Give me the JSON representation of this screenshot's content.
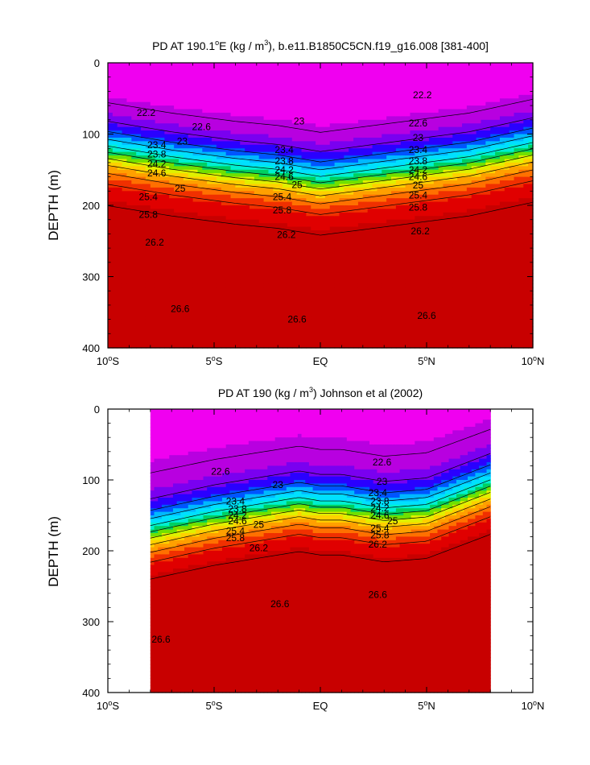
{
  "chart_data": [
    {
      "type": "contour",
      "title_prefix": "PD AT 190.1",
      "title_degree": "o",
      "title_middle": "E (kg / m",
      "title_sup": "3",
      "title_suffix": "), b.e11.B1850C5CN.f19_g16.008 [381-400]",
      "ylabel": "DEPTH (m)",
      "xlim": [
        -10,
        10
      ],
      "ylim": [
        0,
        400
      ],
      "x_ticks": [
        {
          "value": -10,
          "num": "10",
          "deg": "o",
          "hemi": "S"
        },
        {
          "value": -5,
          "num": "5",
          "deg": "o",
          "hemi": "S"
        },
        {
          "value": 0,
          "num": "EQ",
          "deg": "",
          "hemi": ""
        },
        {
          "value": 5,
          "num": "5",
          "deg": "o",
          "hemi": "N"
        },
        {
          "value": 10,
          "num": "10",
          "deg": "o",
          "hemi": "N"
        }
      ],
      "y_ticks": [
        {
          "value": 0,
          "label": "0"
        },
        {
          "value": 100,
          "label": "100"
        },
        {
          "value": 200,
          "label": "200"
        },
        {
          "value": 300,
          "label": "300"
        },
        {
          "value": 400,
          "label": "400"
        }
      ],
      "data_xrange": [
        -10,
        10
      ],
      "fill_range": [
        22.0,
        26.8
      ],
      "field": {
        "surface": 22.35,
        "deep": 26.72,
        "thermocline_depth": [
          {
            "x": -10,
            "d": 125
          },
          {
            "x": -7,
            "d": 140
          },
          {
            "x": -4,
            "d": 152
          },
          {
            "x": -2,
            "d": 158
          },
          {
            "x": 0,
            "d": 168
          },
          {
            "x": 2,
            "d": 160
          },
          {
            "x": 4,
            "d": 152
          },
          {
            "x": 7,
            "d": 140
          },
          {
            "x": 10,
            "d": 120
          }
        ]
      },
      "contour_levels": [
        22.2,
        22.6,
        23.0,
        23.4,
        23.8,
        24.2,
        24.6,
        25.0,
        25.4,
        25.8,
        26.2,
        26.6
      ],
      "contour_labels": [
        {
          "text": "22.2",
          "x": -8.2,
          "depth": 70
        },
        {
          "text": "22.6",
          "x": -5.6,
          "depth": 90
        },
        {
          "text": "23",
          "x": -6.5,
          "depth": 110
        },
        {
          "text": "23.4",
          "x": -7.7,
          "depth": 115
        },
        {
          "text": "23.8",
          "x": -7.7,
          "depth": 128
        },
        {
          "text": "24.2",
          "x": -7.7,
          "depth": 142
        },
        {
          "text": "24.6",
          "x": -7.7,
          "depth": 155
        },
        {
          "text": "25",
          "x": -6.6,
          "depth": 176
        },
        {
          "text": "25.4",
          "x": -8.1,
          "depth": 188
        },
        {
          "text": "25.8",
          "x": -8.1,
          "depth": 213
        },
        {
          "text": "26.2",
          "x": -7.8,
          "depth": 252
        },
        {
          "text": "26.6",
          "x": -6.6,
          "depth": 345
        },
        {
          "text": "23",
          "x": -1.0,
          "depth": 82
        },
        {
          "text": "23.4",
          "x": -1.7,
          "depth": 122
        },
        {
          "text": "23.8",
          "x": -1.7,
          "depth": 138
        },
        {
          "text": "24.2",
          "x": -1.7,
          "depth": 150
        },
        {
          "text": "24.6",
          "x": -1.7,
          "depth": 160
        },
        {
          "text": "25",
          "x": -1.1,
          "depth": 171
        },
        {
          "text": "25.4",
          "x": -1.8,
          "depth": 188
        },
        {
          "text": "25.8",
          "x": -1.8,
          "depth": 207
        },
        {
          "text": "26.2",
          "x": -1.6,
          "depth": 241
        },
        {
          "text": "26.6",
          "x": -1.1,
          "depth": 360
        },
        {
          "text": "22.2",
          "x": 4.8,
          "depth": 45
        },
        {
          "text": "22.6",
          "x": 4.6,
          "depth": 85
        },
        {
          "text": "23",
          "x": 4.6,
          "depth": 105
        },
        {
          "text": "23.4",
          "x": 4.6,
          "depth": 122
        },
        {
          "text": "23.8",
          "x": 4.6,
          "depth": 138
        },
        {
          "text": "24.2",
          "x": 4.6,
          "depth": 150
        },
        {
          "text": "24.6",
          "x": 4.6,
          "depth": 160
        },
        {
          "text": "25",
          "x": 4.6,
          "depth": 172
        },
        {
          "text": "25.4",
          "x": 4.6,
          "depth": 186
        },
        {
          "text": "25.8",
          "x": 4.6,
          "depth": 203
        },
        {
          "text": "26.2",
          "x": 4.7,
          "depth": 236
        },
        {
          "text": "26.6",
          "x": 5.0,
          "depth": 355
        }
      ]
    },
    {
      "type": "contour",
      "title_prefix": "PD AT 190 (kg / m",
      "title_degree": "",
      "title_middle": "",
      "title_sup": "3",
      "title_suffix": ") Johnson et al (2002)",
      "ylabel": "DEPTH (m)",
      "xlim": [
        -10,
        10
      ],
      "ylim": [
        0,
        400
      ],
      "x_ticks": [
        {
          "value": -10,
          "num": "10",
          "deg": "o",
          "hemi": "S"
        },
        {
          "value": -5,
          "num": "5",
          "deg": "o",
          "hemi": "S"
        },
        {
          "value": 0,
          "num": "EQ",
          "deg": "",
          "hemi": ""
        },
        {
          "value": 5,
          "num": "5",
          "deg": "o",
          "hemi": "N"
        },
        {
          "value": 10,
          "num": "10",
          "deg": "o",
          "hemi": "N"
        }
      ],
      "y_ticks": [
        {
          "value": 0,
          "label": "0"
        },
        {
          "value": 100,
          "label": "100"
        },
        {
          "value": 200,
          "label": "200"
        },
        {
          "value": 300,
          "label": "300"
        },
        {
          "value": 400,
          "label": "400"
        }
      ],
      "data_xrange": [
        -8,
        8
      ],
      "fill_range": [
        22.0,
        26.8
      ],
      "field": {
        "surface": 22.45,
        "deep": 26.8,
        "thermocline_depth": [
          {
            "x": -8,
            "d": 175
          },
          {
            "x": -5,
            "d": 155
          },
          {
            "x": -3,
            "d": 145
          },
          {
            "x": -1,
            "d": 135
          },
          {
            "x": 0,
            "d": 140
          },
          {
            "x": 1,
            "d": 140
          },
          {
            "x": 3,
            "d": 150
          },
          {
            "x": 5,
            "d": 145
          },
          {
            "x": 8,
            "d": 110
          }
        ]
      },
      "contour_levels": [
        22.2,
        22.6,
        23.0,
        23.4,
        23.8,
        24.2,
        24.6,
        25.0,
        25.4,
        25.8,
        26.2,
        26.6
      ],
      "contour_labels": [
        {
          "text": "22.6",
          "x": -4.7,
          "depth": 88
        },
        {
          "text": "23",
          "x": -2.0,
          "depth": 107
        },
        {
          "text": "23.4",
          "x": -4.0,
          "depth": 130
        },
        {
          "text": "23.8",
          "x": -3.9,
          "depth": 141
        },
        {
          "text": "24.2",
          "x": -3.9,
          "depth": 150
        },
        {
          "text": "24.6",
          "x": -3.9,
          "depth": 158
        },
        {
          "text": "25",
          "x": -2.9,
          "depth": 163
        },
        {
          "text": "25.4",
          "x": -4.0,
          "depth": 172
        },
        {
          "text": "25.8",
          "x": -4.0,
          "depth": 182
        },
        {
          "text": "26.2",
          "x": -2.9,
          "depth": 196
        },
        {
          "text": "26.6",
          "x": -1.9,
          "depth": 275
        },
        {
          "text": "26.6",
          "x": -7.5,
          "depth": 325
        },
        {
          "text": "22.6",
          "x": 2.9,
          "depth": 75
        },
        {
          "text": "23",
          "x": 2.9,
          "depth": 102
        },
        {
          "text": "23.4",
          "x": 2.7,
          "depth": 118
        },
        {
          "text": "23.8",
          "x": 2.8,
          "depth": 130
        },
        {
          "text": "24.2",
          "x": 2.8,
          "depth": 140
        },
        {
          "text": "24.6",
          "x": 2.8,
          "depth": 150
        },
        {
          "text": "25",
          "x": 3.4,
          "depth": 158
        },
        {
          "text": "25.4",
          "x": 2.8,
          "depth": 168
        },
        {
          "text": "25.8",
          "x": 2.8,
          "depth": 178
        },
        {
          "text": "26.2",
          "x": 2.7,
          "depth": 191
        },
        {
          "text": "26.6",
          "x": 2.7,
          "depth": 262
        }
      ]
    }
  ],
  "colors": {
    "palette": [
      "#c8c8c8",
      "#f000f0",
      "#b800e0",
      "#7a00f0",
      "#2a00ff",
      "#0055ff",
      "#00b8ff",
      "#00e0ff",
      "#00f0d0",
      "#00d060",
      "#70e000",
      "#e0f000",
      "#ffd000",
      "#ffa000",
      "#ff7000",
      "#f03000",
      "#e00000",
      "#c80000"
    ],
    "frame": "#000000",
    "background": "#ffffff"
  }
}
